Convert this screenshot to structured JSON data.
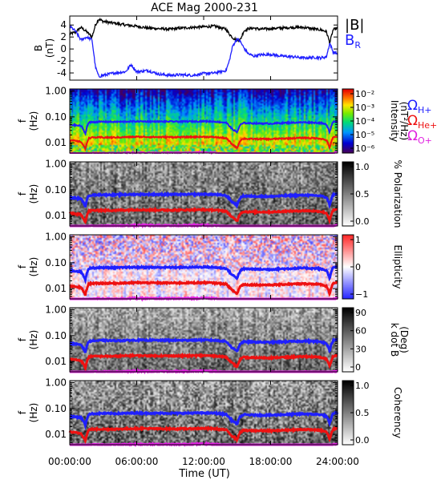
{
  "chart_data": {
    "title": "ACE Mag 2000-231",
    "type": "line",
    "x_axis": {
      "label": "Time (UT)",
      "range_hours": [
        0,
        24
      ],
      "ticks": [
        {
          "value": 0,
          "label": "00:00:00"
        },
        {
          "value": 6,
          "label": "06:00:00"
        },
        {
          "value": 12,
          "label": "12:00:00"
        },
        {
          "value": 18,
          "label": "18:00:00"
        },
        {
          "value": 24,
          "label": "24:00:00"
        }
      ]
    },
    "frequency_axis": {
      "label_line1": "f",
      "label_line2": "(Hz)",
      "scale": "log",
      "range": [
        0.004,
        1.2
      ],
      "ticks": [
        {
          "value": 1,
          "label": "1.00"
        },
        {
          "value": 0.1,
          "label": "0.10"
        },
        {
          "value": 0.01,
          "label": "0.01"
        }
      ]
    },
    "cyclotron_series": [
      {
        "name": "Ω",
        "sub": "H+",
        "color": "#1f1fff",
        "x": [
          0,
          1,
          1.4,
          1.7,
          2,
          3,
          4,
          6,
          8,
          10,
          12,
          13,
          14,
          14.5,
          15,
          15.3,
          15.6,
          16,
          17,
          18,
          19,
          20,
          21,
          22,
          22.5,
          23,
          23.3,
          23.6,
          24
        ],
        "values": [
          0.05,
          0.045,
          0.022,
          0.06,
          0.063,
          0.065,
          0.064,
          0.067,
          0.066,
          0.066,
          0.068,
          0.066,
          0.06,
          0.035,
          0.025,
          0.05,
          0.058,
          0.057,
          0.056,
          0.055,
          0.058,
          0.06,
          0.062,
          0.06,
          0.058,
          0.05,
          0.025,
          0.065,
          0.07
        ]
      },
      {
        "name": "Ω",
        "sub": "He+",
        "color": "#ee1111",
        "x": [
          0,
          1,
          1.4,
          1.7,
          2,
          3,
          4,
          6,
          8,
          10,
          12,
          13,
          14,
          14.5,
          15,
          15.3,
          15.6,
          16,
          17,
          18,
          19,
          20,
          21,
          22,
          22.5,
          23,
          23.3,
          23.6,
          24
        ],
        "values": [
          0.0125,
          0.011,
          0.0055,
          0.015,
          0.016,
          0.016,
          0.016,
          0.017,
          0.0165,
          0.0165,
          0.017,
          0.0165,
          0.015,
          0.009,
          0.0062,
          0.0125,
          0.0145,
          0.014,
          0.014,
          0.0138,
          0.0145,
          0.015,
          0.0155,
          0.015,
          0.0145,
          0.0125,
          0.0062,
          0.016,
          0.0175
        ]
      },
      {
        "name": "Ω",
        "sub": "O+",
        "color": "#e020e0",
        "x": [
          0,
          1,
          1.4,
          1.7,
          2,
          3,
          4,
          6,
          8,
          10,
          12,
          13,
          14,
          14.5,
          15,
          15.3,
          15.6,
          16,
          17,
          18,
          19,
          20,
          21,
          22,
          22.5,
          23,
          23.3,
          23.6,
          24
        ],
        "values": [
          0.0031,
          0.0028,
          0.0014,
          0.0038,
          0.004,
          0.004,
          0.004,
          0.0042,
          0.0041,
          0.0041,
          0.0043,
          0.0041,
          0.0038,
          0.0022,
          0.0016,
          0.0031,
          0.0036,
          0.0035,
          0.0035,
          0.0034,
          0.0036,
          0.0038,
          0.0039,
          0.0038,
          0.0036,
          0.0031,
          0.0016,
          0.004,
          0.0044
        ]
      }
    ],
    "panels": [
      {
        "id": "b-field",
        "type": "line",
        "ylabel_line1": "B",
        "ylabel_line2": "(nT)",
        "ylim": [
          -5.2,
          5.5
        ],
        "yticks": [
          4,
          2,
          0,
          -2,
          -4
        ],
        "legend": [
          {
            "label": "|B|",
            "sub": "",
            "color": "#000000"
          },
          {
            "label": "B",
            "sub": "R",
            "color": "#1f1fff"
          }
        ],
        "series": [
          {
            "name": "|B|",
            "color": "#000000",
            "x": [
              0,
              0.5,
              1,
              1.5,
              2,
              2.3,
              2.6,
              3,
              4,
              5,
              6,
              7,
              8,
              9,
              10,
              11,
              12,
              13,
              14,
              14.3,
              14.6,
              15,
              15.3,
              15.6,
              16,
              16.5,
              17,
              18,
              19,
              20,
              21,
              22,
              22.5,
              23,
              23.3,
              23.6,
              24
            ],
            "values": [
              2.5,
              2.8,
              3.6,
              2.9,
              2.0,
              4.0,
              5.0,
              4.6,
              4.3,
              4.0,
              3.8,
              3.5,
              3.4,
              3.3,
              3.5,
              3.6,
              3.7,
              3.8,
              3.3,
              2.5,
              1.9,
              1.4,
              1.6,
              3.0,
              3.4,
              3.5,
              3.3,
              3.4,
              3.5,
              3.6,
              3.6,
              3.3,
              3.2,
              2.9,
              1.0,
              3.2,
              3.5
            ]
          },
          {
            "name": "B_R",
            "color": "#1f1fff",
            "x": [
              0,
              0.5,
              1,
              1.5,
              2,
              2.3,
              2.6,
              3,
              4,
              5,
              5.5,
              6,
              7,
              8,
              9,
              10,
              11,
              12,
              13,
              14,
              14.3,
              14.6,
              15,
              15.3,
              15.6,
              16,
              16.5,
              17,
              18,
              19,
              20,
              21,
              22,
              22.5,
              23,
              23.3,
              23.6,
              24
            ],
            "values": [
              3.8,
              3.0,
              1.5,
              2.0,
              1.5,
              -3.0,
              -4.6,
              -4.4,
              -4.0,
              -3.8,
              -2.6,
              -3.8,
              -3.6,
              -4.2,
              -4.4,
              -4.3,
              -4.4,
              -4.1,
              -4.0,
              -3.6,
              -2.0,
              0.5,
              1.7,
              1.2,
              0.2,
              -0.8,
              -1.2,
              -1.0,
              -0.9,
              -1.2,
              -1.3,
              -1.5,
              -1.4,
              -1.5,
              -1.3,
              1.0,
              -0.5,
              -0.8
            ]
          }
        ]
      },
      {
        "id": "intensity",
        "type": "heatmap",
        "colormap": "rainbow",
        "cyclotron_thickness": 2,
        "colorbar": {
          "label_line1": "Intensity",
          "label_line2": "(nT²/Hz)",
          "ticks": [
            "10⁻²",
            "10⁻³",
            "10⁻⁴",
            "10⁻⁵",
            "10⁻⁶"
          ]
        }
      },
      {
        "id": "polarization",
        "type": "heatmap",
        "colormap": "gray",
        "cyclotron_thickness": 3,
        "colorbar": {
          "label_line1": "% Polarization",
          "label_line2": "",
          "ticks": [
            "1.0",
            "0.5",
            "0.0"
          ]
        }
      },
      {
        "id": "ellipticity",
        "type": "heatmap",
        "colormap": "bluewhitered",
        "cyclotron_thickness": 3,
        "colorbar": {
          "label_line1": "Ellipticity",
          "label_line2": "",
          "ticks": [
            "1",
            "0",
            "−1"
          ]
        }
      },
      {
        "id": "k-dot-b",
        "type": "heatmap",
        "colormap": "gray",
        "cyclotron_thickness": 3,
        "colorbar": {
          "label_line1": "k dot B",
          "label_line2": "(Deg)",
          "ticks": [
            "90",
            "60",
            "30",
            "0"
          ]
        }
      },
      {
        "id": "coherency",
        "type": "heatmap",
        "colormap": "gray",
        "cyclotron_thickness": 3,
        "colorbar": {
          "label_line1": "Coherency",
          "label_line2": "",
          "ticks": [
            "1.0",
            "0.5",
            "0.0"
          ]
        }
      }
    ]
  }
}
